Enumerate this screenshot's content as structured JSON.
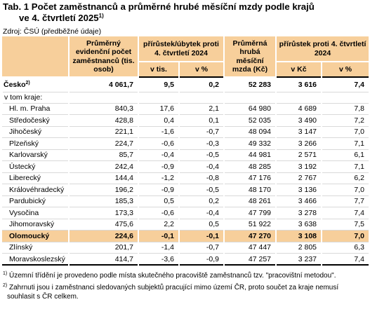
{
  "title": {
    "line1": "Tab. 1 Počet zaměstnanců a průměrné hrubé měsíční mzdy podle krajů",
    "line2": "ve 4. čtvrtletí 2025",
    "note_ref": "1)"
  },
  "source": "Zdroj: ČSÚ (předběžné údaje)",
  "header": {
    "employees": "Průměrný evidenční počet zaměstnanců (tis. osob)",
    "emp_change": "přírůstek/úbytek proti 4. čtvrtletí 2024",
    "emp_change_abs": "v tis.",
    "emp_change_pct": "v %",
    "wage": "Průměrná hrubá měsíční mzda (Kč)",
    "wage_change": "přírůstek proti 4. čtvrtletí 2024",
    "wage_change_abs": "v Kč",
    "wage_change_pct": "v %"
  },
  "total": {
    "name": "Česko",
    "note_ref": "2)",
    "employees": "4 061,7",
    "emp_abs": "9,5",
    "emp_pct": "0,2",
    "wage": "52 283",
    "wage_abs": "3 616",
    "wage_pct": "7,4"
  },
  "subheading": "v tom kraje:",
  "regions": [
    {
      "name": "Hl. m. Praha",
      "employees": "840,3",
      "emp_abs": "17,6",
      "emp_pct": "2,1",
      "wage": "64 980",
      "wage_abs": "4 689",
      "wage_pct": "7,8"
    },
    {
      "name": "Středočeský",
      "employees": "428,8",
      "emp_abs": "0,4",
      "emp_pct": "0,1",
      "wage": "52 035",
      "wage_abs": "3 490",
      "wage_pct": "7,2"
    },
    {
      "name": "Jihočeský",
      "employees": "221,1",
      "emp_abs": "-1,6",
      "emp_pct": "-0,7",
      "wage": "48 094",
      "wage_abs": "3 147",
      "wage_pct": "7,0"
    },
    {
      "name": "Plzeňský",
      "employees": "224,7",
      "emp_abs": "-0,6",
      "emp_pct": "-0,3",
      "wage": "49 332",
      "wage_abs": "3 266",
      "wage_pct": "7,1"
    },
    {
      "name": "Karlovarský",
      "employees": "85,7",
      "emp_abs": "-0,4",
      "emp_pct": "-0,5",
      "wage": "44 981",
      "wage_abs": "2 571",
      "wage_pct": "6,1"
    },
    {
      "name": "Ústecký",
      "employees": "242,4",
      "emp_abs": "-0,9",
      "emp_pct": "-0,4",
      "wage": "48 285",
      "wage_abs": "3 192",
      "wage_pct": "7,1"
    },
    {
      "name": "Liberecký",
      "employees": "144,4",
      "emp_abs": "-1,2",
      "emp_pct": "-0,8",
      "wage": "47 176",
      "wage_abs": "2 767",
      "wage_pct": "6,2"
    },
    {
      "name": "Královéhradecký",
      "employees": "196,2",
      "emp_abs": "-0,9",
      "emp_pct": "-0,5",
      "wage": "48 170",
      "wage_abs": "3 136",
      "wage_pct": "7,0"
    },
    {
      "name": "Pardubický",
      "employees": "185,3",
      "emp_abs": "0,5",
      "emp_pct": "0,2",
      "wage": "48 261",
      "wage_abs": "3 466",
      "wage_pct": "7,7"
    },
    {
      "name": "Vysočina",
      "employees": "173,3",
      "emp_abs": "-0,6",
      "emp_pct": "-0,4",
      "wage": "47 799",
      "wage_abs": "3 278",
      "wage_pct": "7,4"
    },
    {
      "name": "Jihomoravský",
      "employees": "475,6",
      "emp_abs": "2,2",
      "emp_pct": "0,5",
      "wage": "51 922",
      "wage_abs": "3 638",
      "wage_pct": "7,5"
    },
    {
      "name": "Olomoucký",
      "employees": "224,6",
      "emp_abs": "-0,1",
      "emp_pct": "-0,1",
      "wage": "47 270",
      "wage_abs": "3 108",
      "wage_pct": "7,0",
      "highlighted": true
    },
    {
      "name": "Zlínský",
      "employees": "201,7",
      "emp_abs": "-1,4",
      "emp_pct": "-0,7",
      "wage": "47 447",
      "wage_abs": "2 805",
      "wage_pct": "6,3"
    },
    {
      "name": "Moravskoslezský",
      "employees": "414,7",
      "emp_abs": "-3,6",
      "emp_pct": "-0,9",
      "wage": "47 257",
      "wage_abs": "3 237",
      "wage_pct": "7,4"
    }
  ],
  "notes": {
    "n1_ref": "1)",
    "n1": "Územní třídění je provedeno podle místa skutečného pracoviště zaměstnanců tzv. \"pracovištní metodou\".",
    "n2_ref": "2)",
    "n2_line1": "Zahrnuti jsou i zaměstnanci sledovaných subjektů pracující mimo území ČR, proto součet za kraje nemusí",
    "n2_line2": "souhlasit s ČR celkem."
  },
  "colors": {
    "header_bg": "#f7cf9b",
    "highlight_bg": "#f7cf9b"
  }
}
